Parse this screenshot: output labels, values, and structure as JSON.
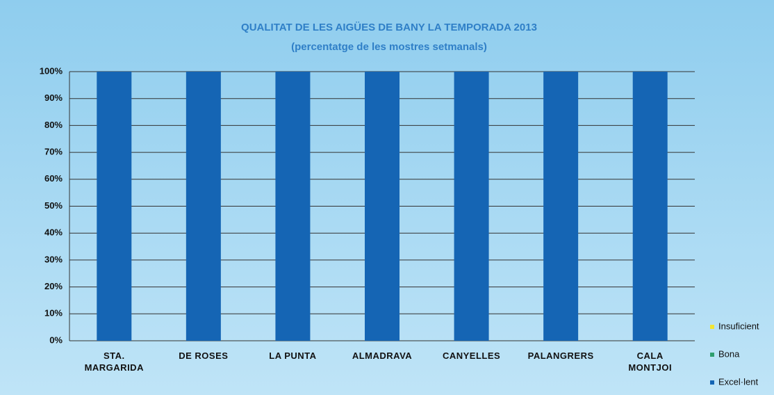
{
  "chart_data": {
    "type": "stacked_bar",
    "title": "QUALITAT DE LES AIGÜES DE BANY LA TEMPORADA 2013",
    "subtitle": "(percentatge de les mostres setmanals)",
    "categories": [
      "STA.\nMARGARIDA",
      "DE ROSES",
      "LA PUNTA",
      "ALMADRAVA",
      "CANYELLES",
      "PALANGRERS",
      "CALA\nMONTJOI"
    ],
    "series": [
      {
        "name": "Excel·lent",
        "color": "#1565b4",
        "values": [
          100,
          100,
          100,
          100,
          100,
          100,
          100
        ]
      },
      {
        "name": "Bona",
        "color": "#2e9e6e",
        "values": [
          0,
          0,
          0,
          0,
          0,
          0,
          0
        ]
      },
      {
        "name": "Insuficient",
        "color": "#f2e533",
        "values": [
          0,
          0,
          0,
          0,
          0,
          0,
          0
        ]
      }
    ],
    "ylim": [
      0,
      100
    ],
    "yticks": [
      {
        "value": 0,
        "label": "0%"
      },
      {
        "value": 10,
        "label": "10%"
      },
      {
        "value": 20,
        "label": "20%"
      },
      {
        "value": 30,
        "label": "30%"
      },
      {
        "value": 40,
        "label": "40%"
      },
      {
        "value": 50,
        "label": "50%"
      },
      {
        "value": 60,
        "label": "60%"
      },
      {
        "value": 70,
        "label": "70%"
      },
      {
        "value": 80,
        "label": "80%"
      },
      {
        "value": 90,
        "label": "90%"
      },
      {
        "value": 100,
        "label": "100%"
      }
    ],
    "grid": true,
    "legend": "bottom-right"
  }
}
